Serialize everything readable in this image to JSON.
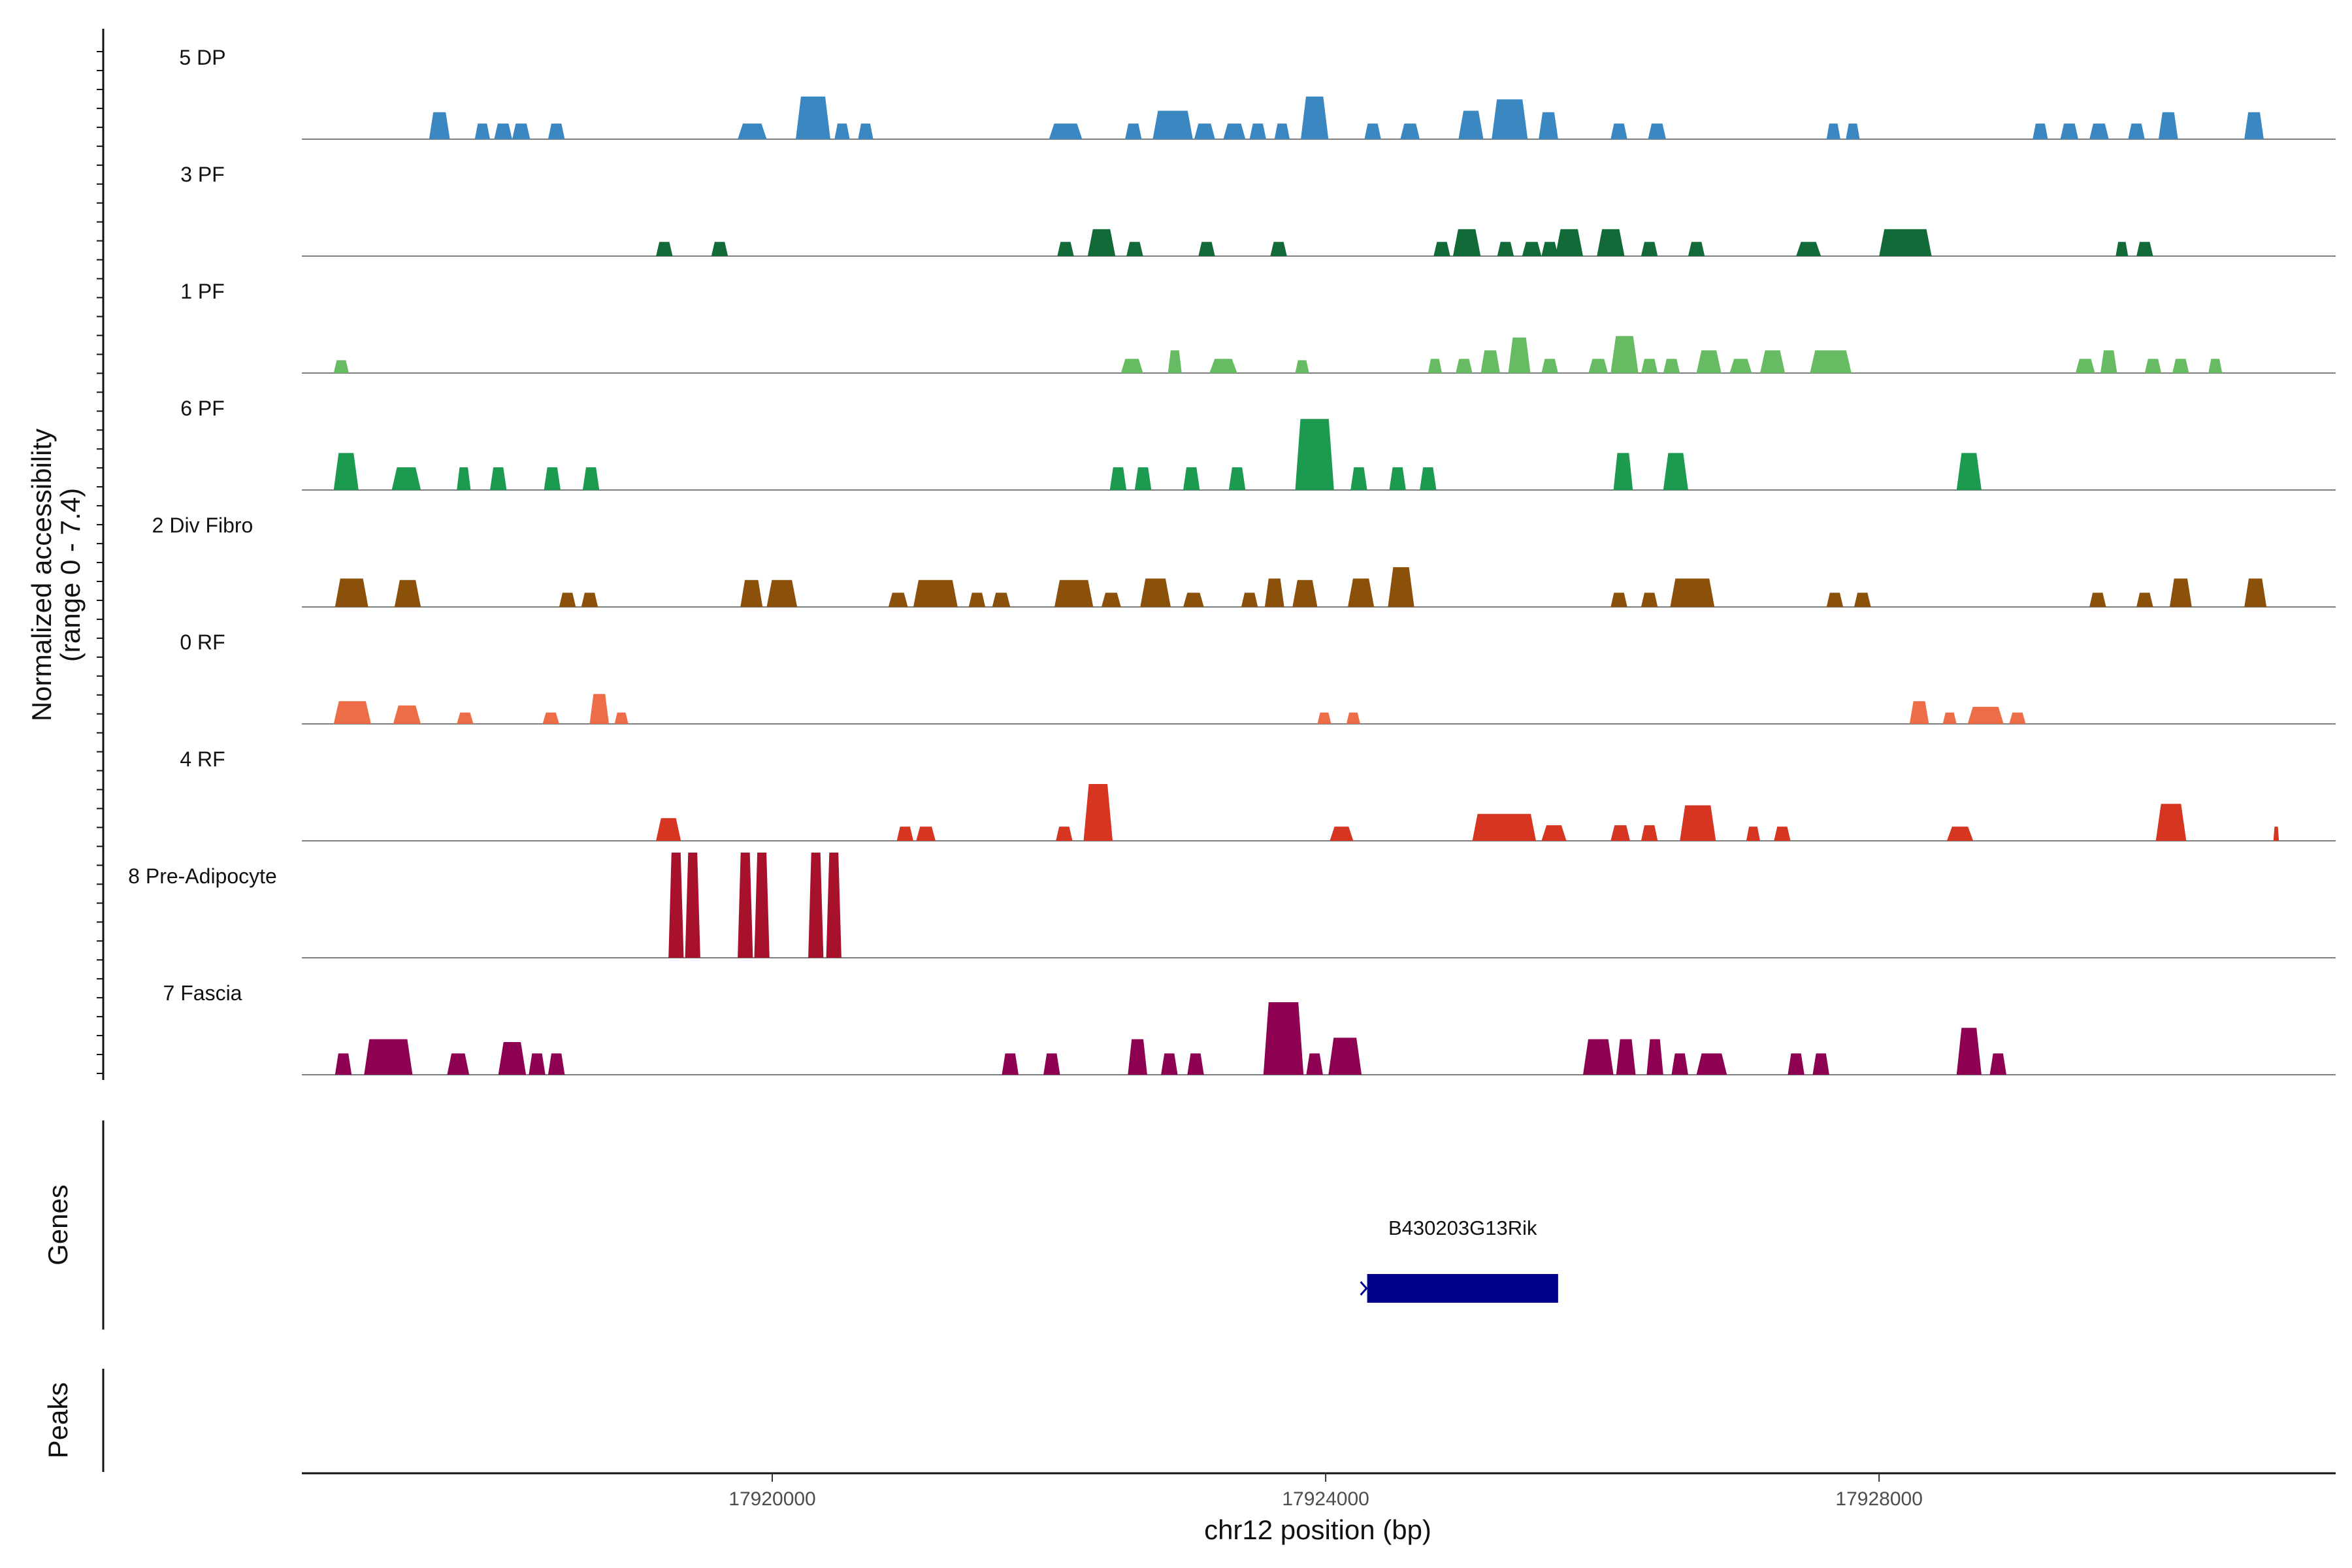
{
  "chart_data": {
    "type": "area",
    "title": "",
    "region": "chr12",
    "xlim": [
      17916600,
      17931300
    ],
    "x_ticks": [
      17920000,
      17924000,
      17928000
    ],
    "xlabel": "chr12 position (bp)",
    "ylabel": "Normalized accessibility",
    "ylabel_range": "(range 0 - 7.4)",
    "ylim": [
      0,
      7.4
    ],
    "panel_labels": {
      "genes": "Genes",
      "peaks": "Peaks"
    },
    "tracks": [
      {
        "name": "5 DP",
        "color": "#3a87c2",
        "peaks": [
          [
            17917520,
            17917670,
            1.9
          ],
          [
            17917850,
            17917960,
            1.1
          ],
          [
            17917990,
            17918120,
            1.1
          ],
          [
            17918120,
            17918250,
            1.1
          ],
          [
            17918380,
            17918500,
            1.1
          ],
          [
            17919750,
            17919960,
            1.1
          ],
          [
            17920170,
            17920420,
            3.0
          ],
          [
            17920450,
            17920560,
            1.1
          ],
          [
            17920620,
            17920730,
            1.1
          ],
          [
            17922000,
            17922240,
            1.1
          ],
          [
            17922550,
            17922670,
            1.1
          ],
          [
            17922750,
            17923040,
            2.0
          ],
          [
            17923050,
            17923200,
            1.1
          ],
          [
            17923260,
            17923420,
            1.1
          ],
          [
            17923450,
            17923570,
            1.1
          ],
          [
            17923630,
            17923740,
            1.1
          ],
          [
            17923820,
            17924020,
            3.0
          ],
          [
            17924280,
            17924400,
            1.1
          ],
          [
            17924540,
            17924680,
            1.1
          ],
          [
            17924960,
            17925140,
            2.0
          ],
          [
            17925200,
            17925460,
            2.8
          ],
          [
            17925540,
            17925680,
            1.9
          ],
          [
            17926060,
            17926180,
            1.1
          ],
          [
            17926330,
            17926460,
            1.1
          ],
          [
            17927620,
            17927720,
            1.1
          ],
          [
            17927760,
            17927860,
            1.1
          ],
          [
            17929110,
            17929220,
            1.1
          ],
          [
            17929310,
            17929440,
            1.1
          ],
          [
            17929520,
            17929660,
            1.1
          ],
          [
            17929800,
            17929920,
            1.1
          ],
          [
            17930020,
            17930160,
            1.9
          ],
          [
            17930640,
            17930780,
            1.9
          ]
        ]
      },
      {
        "name": "3 PF",
        "color": "#126a38",
        "peaks": [
          [
            17919160,
            17919280,
            1.0
          ],
          [
            17919560,
            17919680,
            1.0
          ],
          [
            17922060,
            17922180,
            1.0
          ],
          [
            17922280,
            17922480,
            1.9
          ],
          [
            17922560,
            17922680,
            1.0
          ],
          [
            17923080,
            17923200,
            1.0
          ],
          [
            17923600,
            17923720,
            1.0
          ],
          [
            17924780,
            17924900,
            1.0
          ],
          [
            17924920,
            17925120,
            1.9
          ],
          [
            17925240,
            17925360,
            1.0
          ],
          [
            17925420,
            17925560,
            1.0
          ],
          [
            17925560,
            17925680,
            1.0
          ],
          [
            17925660,
            17925860,
            1.9
          ],
          [
            17925960,
            17926160,
            1.9
          ],
          [
            17926280,
            17926400,
            1.0
          ],
          [
            17926620,
            17926740,
            1.0
          ],
          [
            17927400,
            17927580,
            1.0
          ],
          [
            17928000,
            17928380,
            1.9
          ],
          [
            17929710,
            17929800,
            1.0
          ],
          [
            17929860,
            17929980,
            1.0
          ]
        ]
      },
      {
        "name": "1 PF",
        "color": "#66bb63",
        "peaks": [
          [
            17916830,
            17916940,
            0.9
          ],
          [
            17922520,
            17922680,
            1.0
          ],
          [
            17922860,
            17922960,
            1.6
          ],
          [
            17923160,
            17923360,
            1.0
          ],
          [
            17923780,
            17923880,
            0.9
          ],
          [
            17924740,
            17924840,
            1.0
          ],
          [
            17924940,
            17925060,
            1.0
          ],
          [
            17925120,
            17925260,
            1.6
          ],
          [
            17925320,
            17925480,
            2.5
          ],
          [
            17925560,
            17925680,
            1.0
          ],
          [
            17925900,
            17926040,
            1.0
          ],
          [
            17926060,
            17926260,
            2.6
          ],
          [
            17926280,
            17926400,
            1.0
          ],
          [
            17926440,
            17926560,
            1.0
          ],
          [
            17926680,
            17926860,
            1.6
          ],
          [
            17926920,
            17927080,
            1.0
          ],
          [
            17927140,
            17927320,
            1.6
          ],
          [
            17927500,
            17927800,
            1.6
          ],
          [
            17929420,
            17929560,
            1.0
          ],
          [
            17929600,
            17929720,
            1.6
          ],
          [
            17929920,
            17930040,
            1.0
          ],
          [
            17930120,
            17930240,
            1.0
          ],
          [
            17930380,
            17930480,
            1.0
          ]
        ]
      },
      {
        "name": "6 PF",
        "color": "#1b9a50",
        "peaks": [
          [
            17916830,
            17917010,
            2.6
          ],
          [
            17917250,
            17917460,
            1.6
          ],
          [
            17917720,
            17917820,
            1.6
          ],
          [
            17917960,
            17918080,
            1.6
          ],
          [
            17918350,
            17918470,
            1.6
          ],
          [
            17918630,
            17918750,
            1.6
          ],
          [
            17922440,
            17922560,
            1.6
          ],
          [
            17922620,
            17922740,
            1.6
          ],
          [
            17922970,
            17923090,
            1.6
          ],
          [
            17923300,
            17923420,
            1.6
          ],
          [
            17923780,
            17924060,
            5.0
          ],
          [
            17924180,
            17924300,
            1.6
          ],
          [
            17924460,
            17924580,
            1.6
          ],
          [
            17924680,
            17924800,
            1.6
          ],
          [
            17926080,
            17926220,
            2.6
          ],
          [
            17926440,
            17926620,
            2.6
          ],
          [
            17928560,
            17928740,
            2.6
          ]
        ]
      },
      {
        "name": "2 Div Fibro",
        "color": "#8b5009",
        "peaks": [
          [
            17916840,
            17917080,
            2.0
          ],
          [
            17917270,
            17917460,
            1.9
          ],
          [
            17918460,
            17918580,
            1.0
          ],
          [
            17918620,
            17918740,
            1.0
          ],
          [
            17919770,
            17919930,
            1.9
          ],
          [
            17919960,
            17920180,
            1.9
          ],
          [
            17920840,
            17920980,
            1.0
          ],
          [
            17921020,
            17921340,
            1.9
          ],
          [
            17921420,
            17921540,
            1.0
          ],
          [
            17921590,
            17921720,
            1.0
          ],
          [
            17922040,
            17922320,
            1.9
          ],
          [
            17922380,
            17922520,
            1.0
          ],
          [
            17922660,
            17922880,
            2.0
          ],
          [
            17922970,
            17923120,
            1.0
          ],
          [
            17923390,
            17923510,
            1.0
          ],
          [
            17923560,
            17923700,
            2.0
          ],
          [
            17923760,
            17923940,
            1.9
          ],
          [
            17924160,
            17924350,
            2.0
          ],
          [
            17924450,
            17924640,
            2.8
          ],
          [
            17926060,
            17926180,
            1.0
          ],
          [
            17926280,
            17926400,
            1.0
          ],
          [
            17926490,
            17926810,
            2.0
          ],
          [
            17927620,
            17927740,
            1.0
          ],
          [
            17927820,
            17927940,
            1.0
          ],
          [
            17929520,
            17929640,
            1.0
          ],
          [
            17929860,
            17929980,
            1.0
          ],
          [
            17930100,
            17930260,
            2.0
          ],
          [
            17930640,
            17930800,
            2.0
          ]
        ]
      },
      {
        "name": "0 RF",
        "color": "#ec6d47",
        "peaks": [
          [
            17916830,
            17917100,
            1.6
          ],
          [
            17917260,
            17917460,
            1.3
          ],
          [
            17917720,
            17917840,
            0.8
          ],
          [
            17918340,
            17918460,
            0.8
          ],
          [
            17918680,
            17918820,
            2.1
          ],
          [
            17918860,
            17918960,
            0.8
          ],
          [
            17923940,
            17924040,
            0.8
          ],
          [
            17924150,
            17924250,
            0.8
          ],
          [
            17928220,
            17928360,
            1.6
          ],
          [
            17928460,
            17928560,
            0.8
          ],
          [
            17928640,
            17928900,
            1.2
          ],
          [
            17928940,
            17929060,
            0.8
          ]
        ]
      },
      {
        "name": "4 RF",
        "color": "#d63521",
        "peaks": [
          [
            17919160,
            17919340,
            1.6
          ],
          [
            17920900,
            17921020,
            1.0
          ],
          [
            17921040,
            17921180,
            1.0
          ],
          [
            17922050,
            17922170,
            1.0
          ],
          [
            17922250,
            17922460,
            4.0
          ],
          [
            17924030,
            17924200,
            1.0
          ],
          [
            17925060,
            17925520,
            1.9
          ],
          [
            17925560,
            17925740,
            1.1
          ],
          [
            17926060,
            17926200,
            1.1
          ],
          [
            17926280,
            17926400,
            1.1
          ],
          [
            17926560,
            17926820,
            2.5
          ],
          [
            17927040,
            17927140,
            1.0
          ],
          [
            17927240,
            17927360,
            1.0
          ],
          [
            17928490,
            17928680,
            1.0
          ],
          [
            17930000,
            17930220,
            2.6
          ],
          [
            17930850,
            17930890,
            1.0
          ]
        ]
      },
      {
        "name": "8 Pre-Adipocyte",
        "color": "#a8112b",
        "peaks": [
          [
            17919250,
            17919360,
            7.4
          ],
          [
            17919370,
            17919480,
            7.4
          ],
          [
            17919750,
            17919860,
            7.4
          ],
          [
            17919870,
            17919980,
            7.4
          ],
          [
            17920260,
            17920370,
            7.4
          ],
          [
            17920390,
            17920500,
            7.4
          ]
        ]
      },
      {
        "name": "7 Fascia",
        "color": "#8e0152",
        "peaks": [
          [
            17916840,
            17916960,
            1.5
          ],
          [
            17917050,
            17917400,
            2.5
          ],
          [
            17917650,
            17917810,
            1.5
          ],
          [
            17918020,
            17918220,
            2.3
          ],
          [
            17918240,
            17918360,
            1.5
          ],
          [
            17918380,
            17918500,
            1.5
          ],
          [
            17921660,
            17921780,
            1.5
          ],
          [
            17921960,
            17922080,
            1.5
          ],
          [
            17922570,
            17922710,
            2.5
          ],
          [
            17922810,
            17922930,
            1.5
          ],
          [
            17923000,
            17923120,
            1.5
          ],
          [
            17923550,
            17923840,
            5.1
          ],
          [
            17923860,
            17923980,
            1.5
          ],
          [
            17924020,
            17924260,
            2.6
          ],
          [
            17925860,
            17926080,
            2.5
          ],
          [
            17926100,
            17926240,
            2.5
          ],
          [
            17926320,
            17926440,
            2.5
          ],
          [
            17926500,
            17926620,
            1.5
          ],
          [
            17926680,
            17926900,
            1.5
          ],
          [
            17927340,
            17927460,
            1.5
          ],
          [
            17927520,
            17927640,
            1.5
          ],
          [
            17928560,
            17928740,
            3.3
          ],
          [
            17928800,
            17928920,
            1.5
          ]
        ]
      }
    ],
    "genes": [
      {
        "name": "B430203G13Rik",
        "start": 17924300,
        "end": 17925680,
        "strand": "-",
        "color": "#00008b"
      }
    ]
  }
}
